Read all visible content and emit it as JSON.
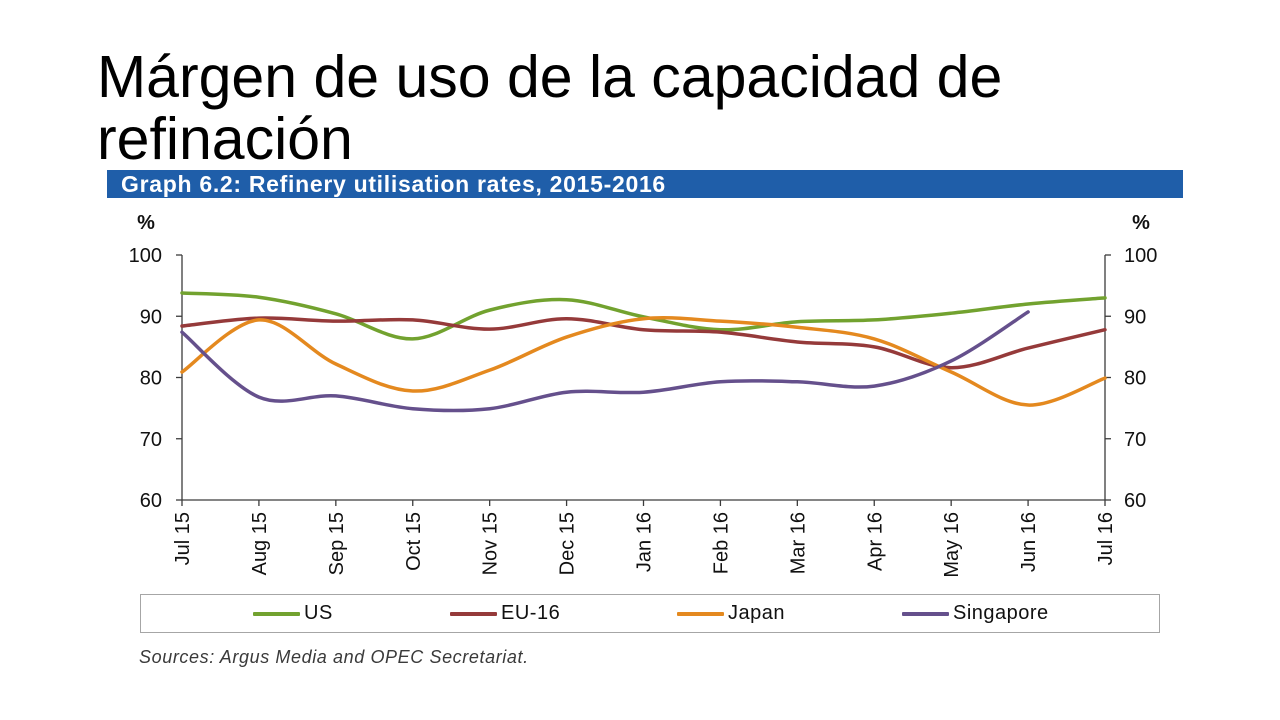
{
  "slide": {
    "title": "Márgen de uso de la capacidad de refinación"
  },
  "colors": {
    "header_bar": "#1f5ea9",
    "axis": "#3c3c3c"
  },
  "chart_data": {
    "type": "line",
    "title": "Graph 6.2: Refinery utilisation rates, 2015-2016",
    "ylabel": "%",
    "ylabel_right": "%",
    "ylim": [
      60,
      100
    ],
    "yticks": [
      60,
      70,
      80,
      90,
      100
    ],
    "grid": false,
    "legend_position": "bottom",
    "categories": [
      "Jul 15",
      "Aug 15",
      "Sep 15",
      "Oct 15",
      "Nov 15",
      "Dec 15",
      "Jan 16",
      "Feb 16",
      "Mar 16",
      "Apr 16",
      "May 16",
      "Jun 16",
      "Jul 16"
    ],
    "series": [
      {
        "name": "US",
        "color": "#72a22f",
        "values": [
          93.8,
          93.1,
          90.4,
          86.3,
          91.0,
          92.7,
          89.9,
          87.8,
          89.1,
          89.4,
          90.5,
          92.0,
          93.0
        ]
      },
      {
        "name": "EU-16",
        "color": "#953a3a",
        "values": [
          88.4,
          89.7,
          89.2,
          89.4,
          87.9,
          89.6,
          87.8,
          87.4,
          85.8,
          85.0,
          81.6,
          84.8,
          87.8
        ]
      },
      {
        "name": "Japan",
        "color": "#e4891f",
        "values": [
          80.9,
          89.4,
          82.2,
          77.8,
          81.2,
          86.6,
          89.6,
          89.2,
          88.2,
          86.3,
          80.9,
          75.5,
          79.9
        ]
      },
      {
        "name": "Singapore",
        "color": "#65508c",
        "values": [
          87.4,
          76.8,
          77.0,
          74.9,
          74.9,
          77.6,
          77.6,
          79.3,
          79.3,
          78.6,
          82.7,
          90.7,
          null
        ]
      }
    ],
    "source": "Sources: Argus Media and OPEC Secretariat."
  }
}
